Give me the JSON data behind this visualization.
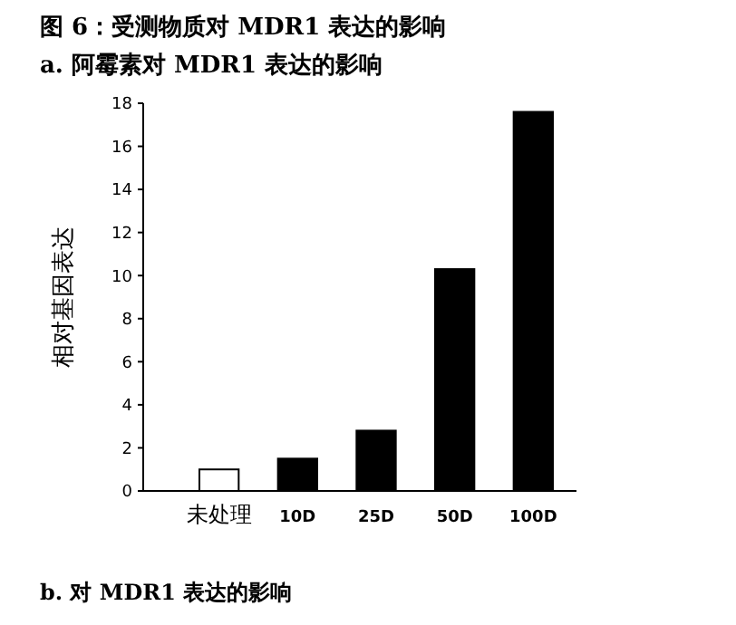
{
  "chart_data": {
    "type": "bar",
    "title": "图 6：受测物质对 MDR1 表达的影响",
    "subtitle": "a. 阿霉素对 MDR1 表达的影响",
    "ylabel": "相对基因表达",
    "categories": [
      "未处理",
      "10D",
      "25D",
      "50D",
      "100D"
    ],
    "values": [
      1.0,
      1.5,
      2.8,
      10.3,
      17.6
    ],
    "colors": [
      "#ffffff",
      "#000000",
      "#000000",
      "#000000",
      "#000000"
    ],
    "ylim": [
      0,
      18
    ],
    "yticks": [
      0,
      2,
      4,
      6,
      8,
      10,
      12,
      14,
      16,
      18
    ],
    "grid": false,
    "annotations": [
      "b. 对 MDR1 表达的影响"
    ]
  }
}
